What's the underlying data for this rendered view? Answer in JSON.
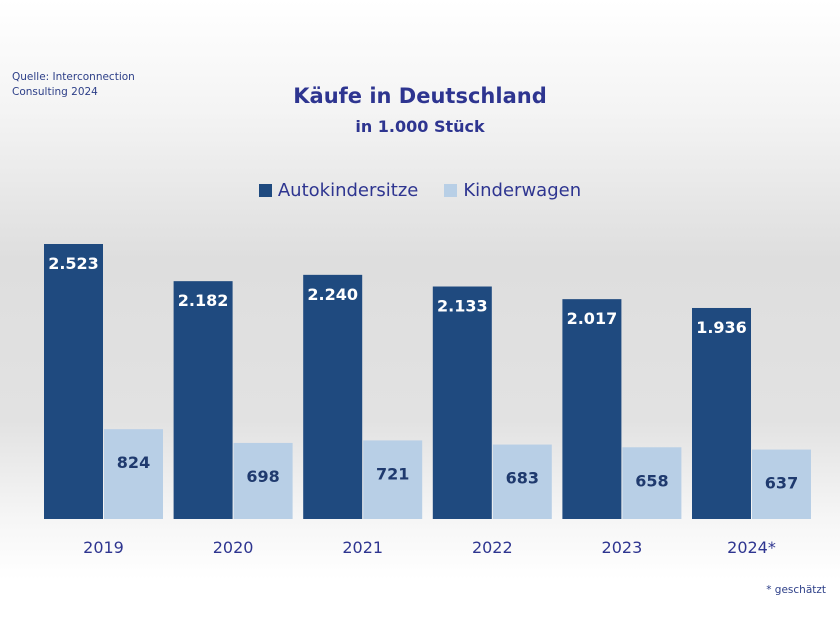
{
  "source": "Quelle: Interconnection Consulting 2024",
  "footnote": "* geschätzt",
  "colors": {
    "Autokindersitze": "#1f4a7f",
    "Kinderwagen": "#b8cfe6",
    "title": "#2e3590"
  },
  "chart_data": {
    "type": "bar",
    "title": "Käufe in Deutschland",
    "subtitle": "in 1.000 Stück",
    "categories": [
      "2019",
      "2020",
      "2021",
      "2022",
      "2023",
      "2024*"
    ],
    "series": [
      {
        "name": "Autokindersitze",
        "values": [
          2523,
          2182,
          2240,
          2133,
          2017,
          1936
        ],
        "labels": [
          "2.523",
          "2.182",
          "2.240",
          "2.133",
          "2.017",
          "1.936"
        ]
      },
      {
        "name": "Kinderwagen",
        "values": [
          824,
          698,
          721,
          683,
          658,
          637
        ],
        "labels": [
          "824",
          "698",
          "721",
          "683",
          "658",
          "637"
        ]
      }
    ],
    "legend": "top",
    "grid": false,
    "ylim": [
      0,
      2523
    ]
  }
}
